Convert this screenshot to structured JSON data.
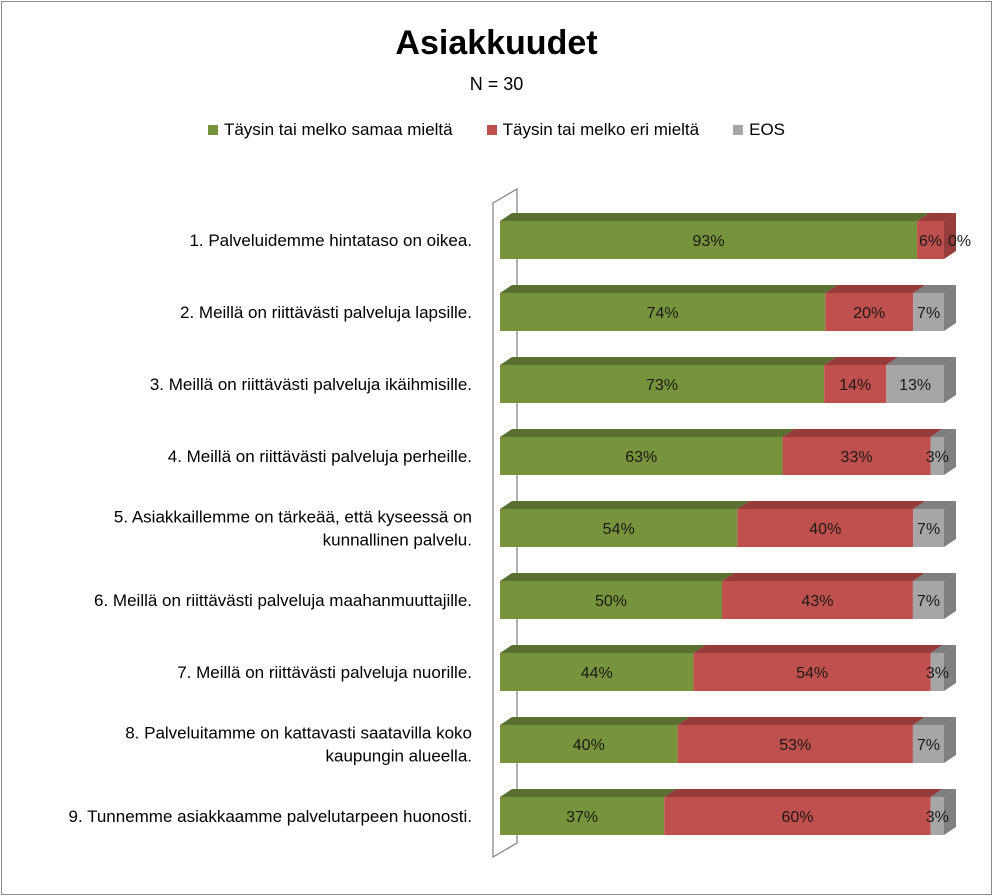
{
  "chart_data": {
    "type": "bar",
    "orientation": "horizontal-stacked-100",
    "title": "Asiakkuudet",
    "subtitle": "N = 30",
    "legend_position": "top",
    "categories": [
      [
        "1. Palveluidemme hintataso on oikea."
      ],
      [
        "2. Meillä on riittävästi palveluja lapsille."
      ],
      [
        "3. Meillä on riittävästi palveluja ikäihmisille."
      ],
      [
        "4. Meillä on riittävästi palveluja perheille."
      ],
      [
        "5. Asiakkaillemme on tärkeää, että kyseessä on",
        "kunnallinen palvelu."
      ],
      [
        "6. Meillä on riittävästi palveluja maahanmuuttajille."
      ],
      [
        "7. Meillä on riittävästi palveluja nuorille."
      ],
      [
        "8. Palveluitamme on kattavasti saatavilla koko",
        "kaupungin alueella."
      ],
      [
        "9. Tunnemme asiakkaamme palvelutarpeen huonosti."
      ]
    ],
    "series": [
      {
        "name": "Täysin tai melko samaa mieltä",
        "color": "#77933c",
        "side_color": "#5a7030",
        "values": [
          93,
          74,
          73,
          63,
          54,
          50,
          44,
          40,
          37
        ],
        "labels": [
          "93%",
          "74%",
          "73%",
          "63%",
          "54%",
          "50%",
          "44%",
          "40%",
          "37%"
        ]
      },
      {
        "name": "Täysin tai melko eri mieltä",
        "color": "#c0504d",
        "side_color": "#963c3a",
        "values": [
          6,
          20,
          14,
          33,
          40,
          43,
          54,
          53,
          60
        ],
        "labels": [
          "6%",
          "20%",
          "14%",
          "33%",
          "40%",
          "43%",
          "54%",
          "53%",
          "60%"
        ]
      },
      {
        "name": "EOS",
        "color": "#a6a6a6",
        "side_color": "#7f7f7f",
        "values": [
          0,
          7,
          13,
          3,
          7,
          7,
          3,
          7,
          3
        ],
        "labels": [
          "0%",
          "7%",
          "13%",
          "3%",
          "7%",
          "7%",
          "3%",
          "7%",
          "3%"
        ]
      }
    ]
  }
}
